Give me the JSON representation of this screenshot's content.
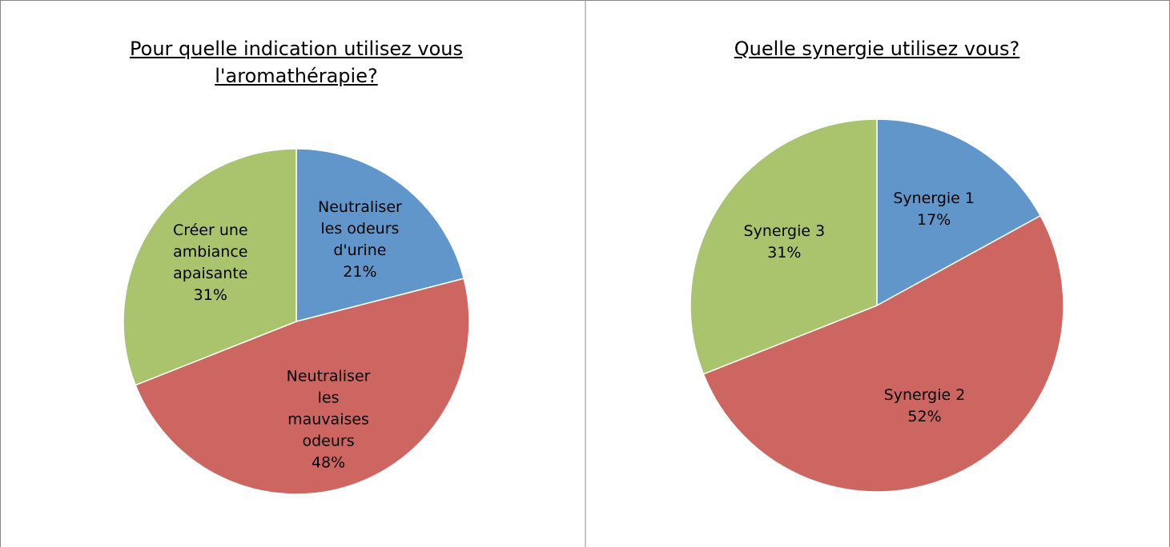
{
  "chart_data": [
    {
      "type": "pie",
      "title": "Pour quelle indication utilisez vous l'aromathérapie?",
      "categories": [
        "Neutraliser les odeurs d'urine",
        "Neutraliser les mauvaises odeurs",
        "Créer une ambiance apaisante"
      ],
      "values": [
        21,
        48,
        31
      ],
      "value_labels": [
        "21%",
        "48%",
        "31%"
      ],
      "colors": [
        "#6096c9",
        "#cd6660",
        "#a9c46c"
      ]
    },
    {
      "type": "pie",
      "title": "Quelle synergie utilisez vous?",
      "categories": [
        "Synergie 1",
        "Synergie 2",
        "Synergie 3"
      ],
      "values": [
        17,
        52,
        31
      ],
      "value_labels": [
        "17%",
        "52%",
        "31%"
      ],
      "colors": [
        "#6096c9",
        "#cd6660",
        "#a9c46c"
      ]
    }
  ]
}
